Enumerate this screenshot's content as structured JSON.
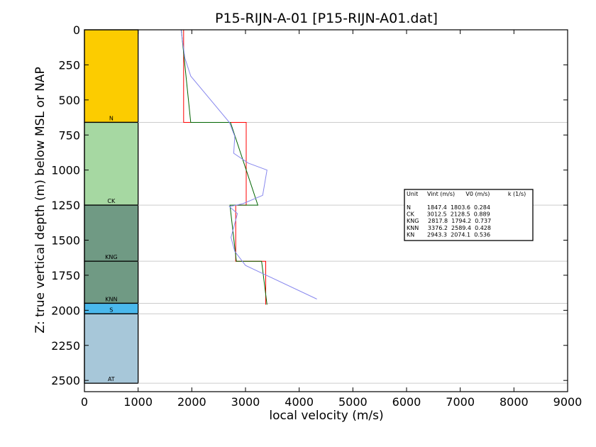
{
  "chart_data": {
    "type": "line",
    "title": "P15-RIJN-A-01 [P15-RIJN-A01.dat]",
    "xlabel": "local velocity (m/s)",
    "ylabel": "Z: true vertical depth (m) below MSL or NAP",
    "xlim": [
      0,
      9000
    ],
    "ylim": [
      2580,
      0
    ],
    "x_ticks": [
      "0",
      "1000",
      "2000",
      "3000",
      "4000",
      "5000",
      "6000",
      "7000",
      "8000",
      "9000"
    ],
    "y_ticks": [
      "0",
      "250",
      "500",
      "750",
      "1000",
      "1250",
      "1500",
      "1750",
      "2000",
      "2250",
      "2500"
    ],
    "x_tick_values": [
      0,
      1000,
      2000,
      3000,
      4000,
      5000,
      6000,
      7000,
      8000,
      9000
    ],
    "y_tick_values": [
      0,
      250,
      500,
      750,
      1000,
      1250,
      1500,
      1750,
      2000,
      2250,
      2500
    ],
    "grid": false,
    "units": [
      {
        "name": "N",
        "top": 0,
        "base": 660,
        "color": "#fccc00"
      },
      {
        "name": "CK",
        "top": 660,
        "base": 1250,
        "color": "#a6d8a2"
      },
      {
        "name": "KNG",
        "top": 1250,
        "base": 1650,
        "color": "#709a84"
      },
      {
        "name": "KNN",
        "top": 1650,
        "base": 1950,
        "color": "#709a84"
      },
      {
        "name": "S",
        "top": 1950,
        "base": 2025,
        "color": "#4ab8ec"
      },
      {
        "name": "AT",
        "top": 2025,
        "base": 2520,
        "color": "#a7c7d9"
      }
    ],
    "unit_column_x": [
      0,
      1000
    ],
    "boundaries": [
      660,
      1250,
      1650,
      1950,
      2025,
      2520
    ],
    "series": [
      {
        "color": "#ff0000",
        "x": [
          1847,
          1847,
          3013,
          3013,
          2818,
          2818,
          3376,
          3376
        ],
        "y": [
          0,
          660,
          660,
          1250,
          1250,
          1650,
          1650,
          1960
        ]
      },
      {
        "color": "#006400",
        "x": [
          1804,
          1980,
          2720,
          3230,
          2710,
          2830,
          3300,
          3400
        ],
        "y": [
          0,
          660,
          660,
          1250,
          1250,
          1650,
          1650,
          1960
        ]
      },
      {
        "color": "#8888ee",
        "x": [
          1800,
          1870,
          1980,
          2700,
          2800,
          2780,
          3050,
          3400,
          3320,
          2950,
          2700,
          2850,
          2800,
          2730,
          2800,
          3000,
          4330
        ],
        "y": [
          0,
          200,
          330,
          660,
          760,
          880,
          950,
          1000,
          1180,
          1240,
          1260,
          1310,
          1380,
          1480,
          1580,
          1680,
          1920
        ]
      }
    ],
    "legend": {
      "placement": "right",
      "header": "Unit     Vint (m/s)      V0 (m/s)          k (1/s)",
      "rows": [
        "N         1847.4  1803.6  0.284",
        "CK       3012.5  2128.5  0.889",
        "KNG     2817.8  1794.2  0.737",
        "KNN     3376.2  2589.4  0.428",
        "KN       2943.3  2074.1  0.536"
      ]
    }
  }
}
